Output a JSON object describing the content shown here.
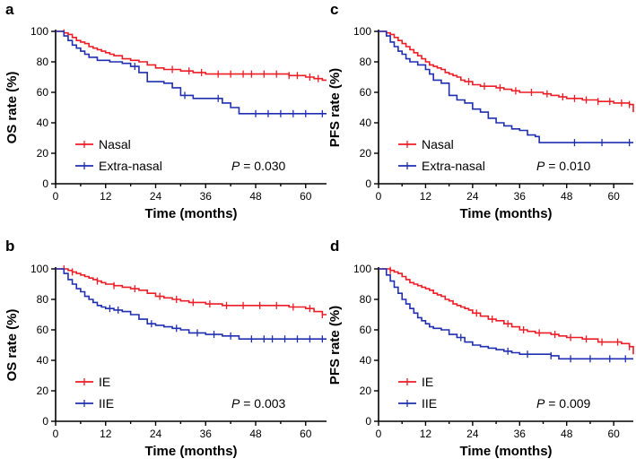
{
  "colors": {
    "red": "#ee1c25",
    "blue": "#1f2fb0",
    "axis": "#000000"
  },
  "chart_data": [
    {
      "panel": "a",
      "type": "line",
      "title": "",
      "xlabel": "Time (months)",
      "ylabel": "OS rate (%)",
      "xlim": [
        0,
        65
      ],
      "ylim": [
        0,
        100
      ],
      "xticks": [
        0,
        12,
        24,
        36,
        48,
        60
      ],
      "yticks": [
        0,
        20,
        40,
        60,
        80,
        100
      ],
      "pvalue_label": "P",
      "pvalue_value": " = 0.030",
      "series": [
        {
          "name": "Nasal",
          "color": "red",
          "x": [
            0,
            2,
            3,
            4,
            5,
            6,
            7,
            8,
            9,
            10,
            11,
            12,
            13,
            14,
            16,
            18,
            20,
            22,
            24,
            26,
            28,
            30,
            33,
            36,
            40,
            44,
            48,
            52,
            56,
            60,
            62,
            64,
            65
          ],
          "y": [
            100,
            99,
            98,
            96,
            94,
            93,
            92,
            90,
            89,
            88,
            87,
            86,
            85,
            84,
            82,
            81,
            80,
            78,
            76,
            75,
            75,
            74,
            73,
            72,
            72,
            72,
            72,
            72,
            71,
            70,
            69,
            68,
            68
          ],
          "censor_x": [
            2,
            28,
            32,
            35,
            39,
            42,
            45,
            47,
            50,
            53,
            56,
            58,
            61,
            63
          ]
        },
        {
          "name": "Extra-nasal",
          "color": "blue",
          "x": [
            0,
            2,
            3,
            4,
            5,
            6,
            7,
            8,
            10,
            13,
            16,
            18,
            20,
            22,
            26,
            28,
            30,
            33,
            40,
            42,
            44,
            65
          ],
          "y": [
            100,
            97,
            94,
            91,
            89,
            87,
            85,
            83,
            81,
            80,
            79,
            77,
            73,
            67,
            66,
            63,
            58,
            56,
            53,
            50,
            46,
            46
          ],
          "censor_x": [
            19,
            31,
            39,
            48,
            51,
            54,
            57,
            60,
            64
          ]
        }
      ]
    },
    {
      "panel": "c",
      "type": "line",
      "title": "",
      "xlabel": "Time (months)",
      "ylabel": "PFS rate (%)",
      "xlim": [
        0,
        65
      ],
      "ylim": [
        0,
        100
      ],
      "xticks": [
        0,
        12,
        24,
        36,
        48,
        60
      ],
      "yticks": [
        0,
        20,
        40,
        60,
        80,
        100
      ],
      "pvalue_label": "P",
      "pvalue_value": " = 0.010",
      "series": [
        {
          "name": "Nasal",
          "color": "red",
          "x": [
            0,
            2,
            3,
            4,
            5,
            6,
            7,
            8,
            9,
            10,
            11,
            12,
            13,
            14,
            15,
            16,
            17,
            18,
            19,
            20,
            21,
            22,
            24,
            26,
            28,
            30,
            32,
            34,
            36,
            38,
            40,
            42,
            44,
            46,
            48,
            52,
            56,
            60,
            62,
            64,
            65
          ],
          "y": [
            100,
            99,
            98,
            96,
            94,
            92,
            90,
            88,
            86,
            84,
            82,
            80,
            78,
            77,
            76,
            75,
            73,
            72,
            71,
            70,
            68,
            67,
            65,
            64,
            64,
            63,
            62,
            61,
            60,
            60,
            60,
            59,
            58,
            57,
            56,
            55,
            54,
            53,
            53,
            52,
            47
          ],
          "censor_x": [
            23,
            27,
            31,
            35,
            39,
            43,
            47,
            50,
            53,
            56,
            59,
            62,
            64
          ]
        },
        {
          "name": "Extra-nasal",
          "color": "blue",
          "x": [
            0,
            2,
            3,
            4,
            5,
            6,
            7,
            8,
            10,
            12,
            13,
            14,
            16,
            18,
            20,
            22,
            24,
            26,
            28,
            30,
            32,
            34,
            36,
            38,
            40,
            41,
            65
          ],
          "y": [
            100,
            97,
            93,
            90,
            87,
            85,
            82,
            80,
            78,
            75,
            72,
            68,
            66,
            58,
            55,
            53,
            49,
            47,
            43,
            40,
            38,
            36,
            35,
            32,
            31,
            27,
            27
          ],
          "censor_x": [
            50,
            57,
            64
          ]
        }
      ]
    },
    {
      "panel": "b",
      "type": "line",
      "title": "",
      "xlabel": "Time (months)",
      "ylabel": "OS rate (%)",
      "xlim": [
        0,
        65
      ],
      "ylim": [
        0,
        100
      ],
      "xticks": [
        0,
        12,
        24,
        36,
        48,
        60
      ],
      "yticks": [
        0,
        20,
        40,
        60,
        80,
        100
      ],
      "pvalue_label": "P",
      "pvalue_value": " = 0.003",
      "series": [
        {
          "name": "IE",
          "color": "red",
          "x": [
            0,
            3,
            4,
            5,
            6,
            7,
            8,
            9,
            10,
            11,
            12,
            14,
            16,
            18,
            20,
            22,
            24,
            26,
            28,
            30,
            32,
            36,
            40,
            44,
            48,
            52,
            56,
            60,
            62,
            64,
            65
          ],
          "y": [
            100,
            99,
            98,
            97,
            96,
            95,
            94,
            93,
            92,
            91,
            90,
            89,
            88,
            87,
            86,
            84,
            82,
            81,
            80,
            79,
            78,
            77,
            76,
            76,
            76,
            76,
            75,
            74,
            72,
            70,
            70
          ],
          "censor_x": [
            2,
            4,
            10,
            14,
            19,
            25,
            29,
            33,
            37,
            41,
            45,
            49,
            53,
            57,
            61,
            64
          ]
        },
        {
          "name": "IIE",
          "color": "blue",
          "x": [
            0,
            2,
            3,
            4,
            5,
            6,
            7,
            8,
            9,
            10,
            11,
            12,
            14,
            16,
            18,
            20,
            22,
            24,
            26,
            28,
            30,
            32,
            36,
            40,
            44,
            65
          ],
          "y": [
            100,
            97,
            93,
            90,
            87,
            85,
            82,
            80,
            78,
            76,
            75,
            74,
            73,
            72,
            70,
            67,
            64,
            63,
            62,
            61,
            60,
            58,
            57,
            56,
            54,
            54
          ],
          "censor_x": [
            13,
            15,
            23,
            29,
            34,
            38,
            42,
            47,
            50,
            52,
            55,
            58,
            61,
            64
          ]
        }
      ]
    },
    {
      "panel": "d",
      "type": "line",
      "title": "",
      "xlabel": "Time (months)",
      "ylabel": "PFS rate (%)",
      "xlim": [
        0,
        65
      ],
      "ylim": [
        0,
        100
      ],
      "xticks": [
        0,
        12,
        24,
        36,
        48,
        60
      ],
      "yticks": [
        0,
        20,
        40,
        60,
        80,
        100
      ],
      "pvalue_label": "P",
      "pvalue_value": " = 0.009",
      "series": [
        {
          "name": "IE",
          "color": "red",
          "x": [
            0,
            3,
            4,
            5,
            6,
            7,
            8,
            9,
            10,
            11,
            12,
            13,
            14,
            15,
            16,
            17,
            18,
            19,
            20,
            21,
            22,
            23,
            24,
            26,
            28,
            30,
            32,
            34,
            36,
            38,
            40,
            42,
            44,
            46,
            48,
            52,
            56,
            60,
            62,
            64,
            65
          ],
          "y": [
            100,
            99,
            98,
            97,
            95,
            93,
            91,
            90,
            89,
            88,
            87,
            86,
            84,
            83,
            82,
            80,
            79,
            77,
            76,
            75,
            74,
            73,
            71,
            69,
            67,
            66,
            64,
            62,
            60,
            59,
            58,
            58,
            57,
            56,
            55,
            54,
            52,
            52,
            51,
            49,
            44
          ],
          "censor_x": [
            3,
            25,
            29,
            33,
            37,
            41,
            45,
            49,
            53,
            57,
            61,
            64
          ]
        },
        {
          "name": "IIE",
          "color": "blue",
          "x": [
            0,
            2,
            3,
            4,
            5,
            6,
            7,
            8,
            9,
            10,
            11,
            12,
            13,
            14,
            16,
            18,
            20,
            22,
            24,
            26,
            28,
            30,
            32,
            34,
            36,
            40,
            44,
            46,
            65
          ],
          "y": [
            100,
            96,
            92,
            88,
            84,
            80,
            77,
            74,
            71,
            68,
            66,
            64,
            62,
            61,
            60,
            57,
            55,
            52,
            50,
            49,
            48,
            47,
            46,
            45,
            44,
            44,
            43,
            41,
            41
          ],
          "censor_x": [
            21,
            33,
            38,
            44,
            49,
            54,
            59,
            63
          ]
        }
      ]
    }
  ]
}
